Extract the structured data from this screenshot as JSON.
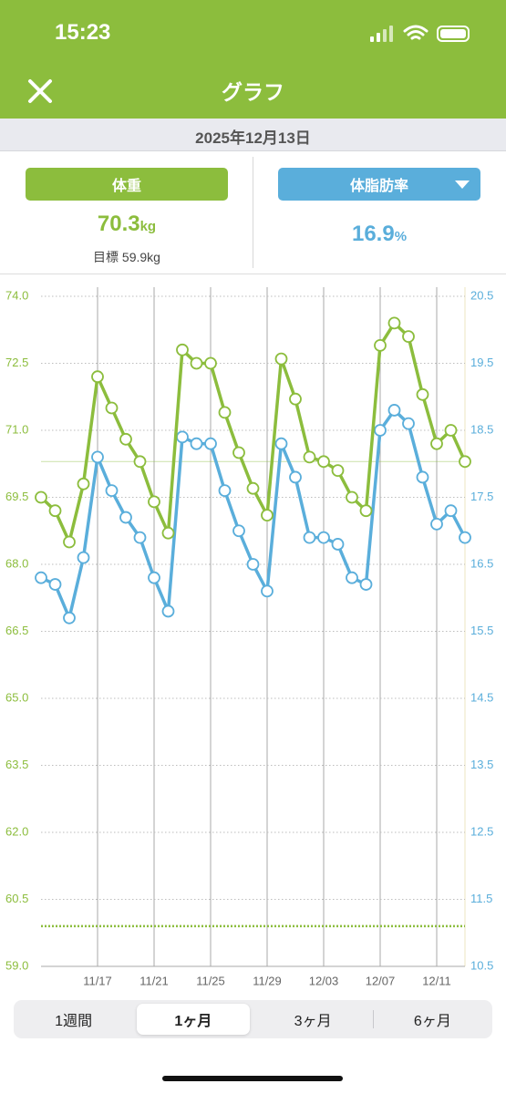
{
  "status": {
    "time": "15:23"
  },
  "header": {
    "title": "グラフ"
  },
  "date": "2025年12月13日",
  "weight": {
    "label": "体重",
    "value": "70.3",
    "unit": "kg",
    "goal": "目標 59.9kg"
  },
  "body_fat": {
    "label": "体脂肪率",
    "value": "16.9",
    "unit": "%"
  },
  "period_tabs": [
    "1週間",
    "1ヶ月",
    "3ヶ月",
    "6ヶ月"
  ],
  "selected_tab": 1,
  "chart_data": {
    "type": "line",
    "categories": [
      null,
      null,
      null,
      null,
      "11/17",
      null,
      null,
      null,
      "11/21",
      null,
      null,
      null,
      "11/25",
      null,
      null,
      null,
      "11/29",
      null,
      null,
      null,
      "12/03",
      null,
      null,
      null,
      "12/07",
      null,
      null,
      null,
      "12/11",
      null,
      null
    ],
    "series": [
      {
        "color": "#8cbd3d",
        "axis": "y",
        "values": [
          69.5,
          69.2,
          68.5,
          69.8,
          72.2,
          71.5,
          70.8,
          70.3,
          69.4,
          68.7,
          72.8,
          72.5,
          72.5,
          71.4,
          70.5,
          69.7,
          69.1,
          72.6,
          71.7,
          70.4,
          70.3,
          70.1,
          69.5,
          69.2,
          72.9,
          73.4,
          73.1,
          71.8,
          70.7,
          71.0,
          70.3
        ]
      },
      {
        "color": "#5aaedb",
        "axis": "y2",
        "values": [
          16.3,
          16.2,
          15.7,
          16.6,
          18.1,
          17.6,
          17.2,
          16.9,
          16.3,
          15.8,
          18.4,
          18.3,
          18.3,
          17.6,
          17.0,
          16.5,
          16.1,
          18.3,
          17.8,
          16.9,
          16.9,
          16.8,
          16.3,
          16.2,
          18.5,
          18.8,
          18.6,
          17.8,
          17.1,
          17.3,
          16.9
        ]
      }
    ],
    "ylim": [
      59,
      74
    ],
    "yticks": [
      {
        "value": 59,
        "label": "59.0"
      },
      60.5,
      {
        "value": 62,
        "label": "62.0"
      },
      63.5,
      {
        "value": 65,
        "label": "65.0"
      },
      66.5,
      {
        "value": 68,
        "label": "68.0"
      },
      69.5,
      {
        "value": 71,
        "label": "71.0"
      },
      72.5,
      {
        "value": 74,
        "label": "74.0"
      }
    ],
    "y2lim": [
      10.5,
      20.5
    ],
    "y2ticks": [
      10.5,
      11.5,
      12.5,
      13.5,
      14.5,
      15.5,
      16.5,
      17.5,
      18.5,
      19.5,
      20.5
    ],
    "reference_lines": [
      {
        "value": 70.3,
        "style": "solid"
      },
      {
        "value": 59.9,
        "style": "dotted"
      }
    ],
    "grid": true
  }
}
